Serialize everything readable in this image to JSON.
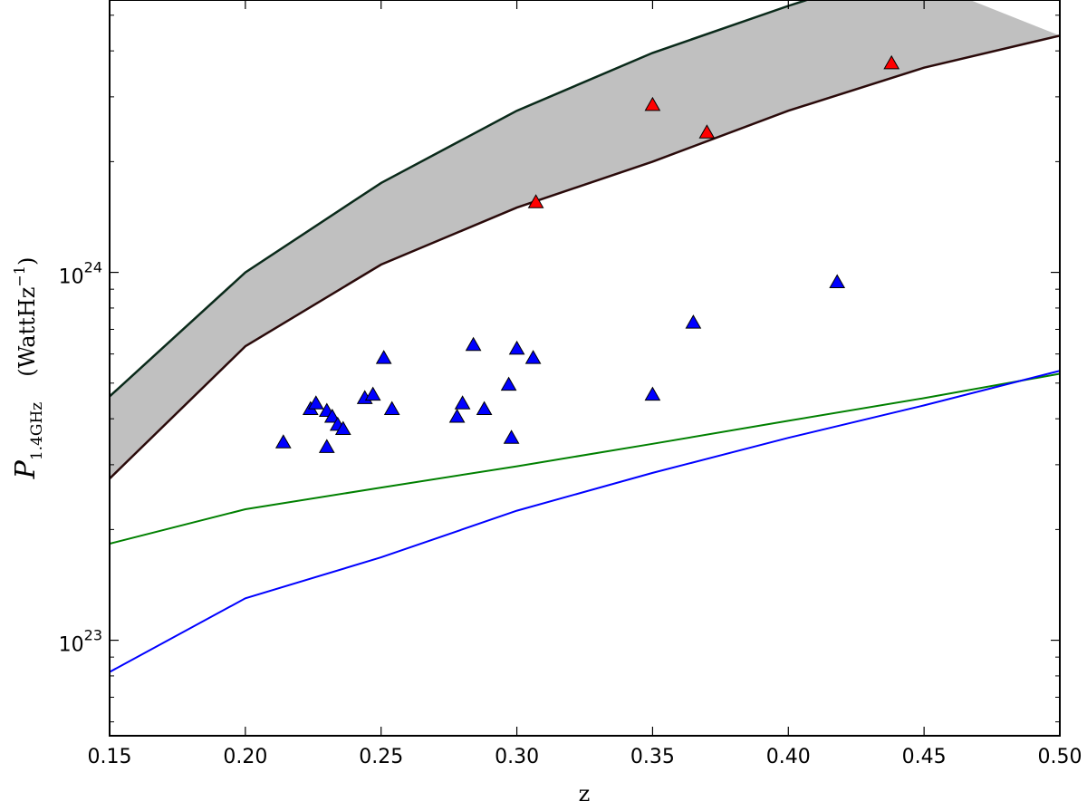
{
  "chart_data": {
    "type": "scatter",
    "title": "",
    "xlabel": "z",
    "ylabel_main": "P",
    "ylabel_sub": "1.4GHz",
    "ylabel_units_prefix": "(WattHz",
    "ylabel_units_exp": "−1",
    "ylabel_units_suffix": ")",
    "xscale": "linear",
    "yscale": "log",
    "xlim": [
      0.15,
      0.5
    ],
    "ylim": [
      5.5e+22,
      5.5e+24
    ],
    "grid": false,
    "x_ticks": [
      0.15,
      0.2,
      0.25,
      0.3,
      0.35,
      0.4,
      0.45,
      0.5
    ],
    "x_tick_labels": [
      "0.15",
      "0.20",
      "0.25",
      "0.30",
      "0.35",
      "0.40",
      "0.45",
      "0.50"
    ],
    "y_major_ticks": [
      {
        "value": 1e+23,
        "base": "10",
        "exp": "23"
      },
      {
        "value": 1e+24,
        "base": "10",
        "exp": "24"
      }
    ],
    "y_minor_ticks": [
      6e+22,
      7e+22,
      8e+22,
      9e+22,
      2e+23,
      3e+23,
      4e+23,
      5e+23,
      6e+23,
      7e+23,
      8e+23,
      9e+23,
      2e+24,
      3e+24,
      4e+24,
      5e+24
    ],
    "band": {
      "fill": "#c0c0c0",
      "upper": {
        "color": "#0a2a1a",
        "points": [
          [
            0.15,
            4.6e+23
          ],
          [
            0.2,
            1e+24
          ],
          [
            0.25,
            1.75e+24
          ],
          [
            0.3,
            2.75e+24
          ],
          [
            0.35,
            3.95e+24
          ],
          [
            0.4,
            5.3e+24
          ],
          [
            0.44,
            6.6e+24
          ]
        ]
      },
      "lower": {
        "color": "#2a0a0a",
        "points": [
          [
            0.15,
            2.75e+23
          ],
          [
            0.2,
            6.3e+23
          ],
          [
            0.25,
            1.05e+24
          ],
          [
            0.3,
            1.5e+24
          ],
          [
            0.35,
            2e+24
          ],
          [
            0.4,
            2.75e+24
          ],
          [
            0.45,
            3.6e+24
          ],
          [
            0.5,
            4.4e+24
          ]
        ]
      }
    },
    "curves": [
      {
        "color": "#008000",
        "points": [
          [
            0.15,
            1.83e+23
          ],
          [
            0.2,
            2.27e+23
          ],
          [
            0.25,
            2.6e+23
          ],
          [
            0.3,
            2.97e+23
          ],
          [
            0.35,
            3.42e+23
          ],
          [
            0.4,
            3.95e+23
          ],
          [
            0.45,
            4.55e+23
          ],
          [
            0.5,
            5.3e+23
          ]
        ]
      },
      {
        "color": "#0000ff",
        "points": [
          [
            0.15,
            8.2e+22
          ],
          [
            0.2,
            1.3e+23
          ],
          [
            0.25,
            1.68e+23
          ],
          [
            0.3,
            2.25e+23
          ],
          [
            0.35,
            2.85e+23
          ],
          [
            0.4,
            3.55e+23
          ],
          [
            0.45,
            4.35e+23
          ],
          [
            0.5,
            5.4e+23
          ]
        ]
      }
    ],
    "series": [
      {
        "color": "#ff0000",
        "marker": "triangle",
        "points": [
          [
            0.307,
            1.55e+24
          ],
          [
            0.35,
            2.85e+24
          ],
          [
            0.37,
            2.4e+24
          ],
          [
            0.438,
            3.7e+24
          ]
        ]
      },
      {
        "color": "#0000ff",
        "marker": "triangle",
        "points": [
          [
            0.214,
            3.45e+23
          ],
          [
            0.224,
            4.25e+23
          ],
          [
            0.226,
            4.4e+23
          ],
          [
            0.23,
            4.2e+23
          ],
          [
            0.23,
            3.35e+23
          ],
          [
            0.232,
            4.05e+23
          ],
          [
            0.234,
            3.85e+23
          ],
          [
            0.236,
            3.75e+23
          ],
          [
            0.244,
            4.55e+23
          ],
          [
            0.247,
            4.65e+23
          ],
          [
            0.251,
            5.85e+23
          ],
          [
            0.254,
            4.25e+23
          ],
          [
            0.278,
            4.05e+23
          ],
          [
            0.28,
            4.4e+23
          ],
          [
            0.284,
            6.35e+23
          ],
          [
            0.288,
            4.25e+23
          ],
          [
            0.297,
            4.95e+23
          ],
          [
            0.298,
            3.55e+23
          ],
          [
            0.3,
            6.2e+23
          ],
          [
            0.306,
            5.85e+23
          ],
          [
            0.35,
            4.65e+23
          ],
          [
            0.365,
            7.3e+23
          ],
          [
            0.418,
            9.4e+23
          ]
        ]
      }
    ]
  }
}
